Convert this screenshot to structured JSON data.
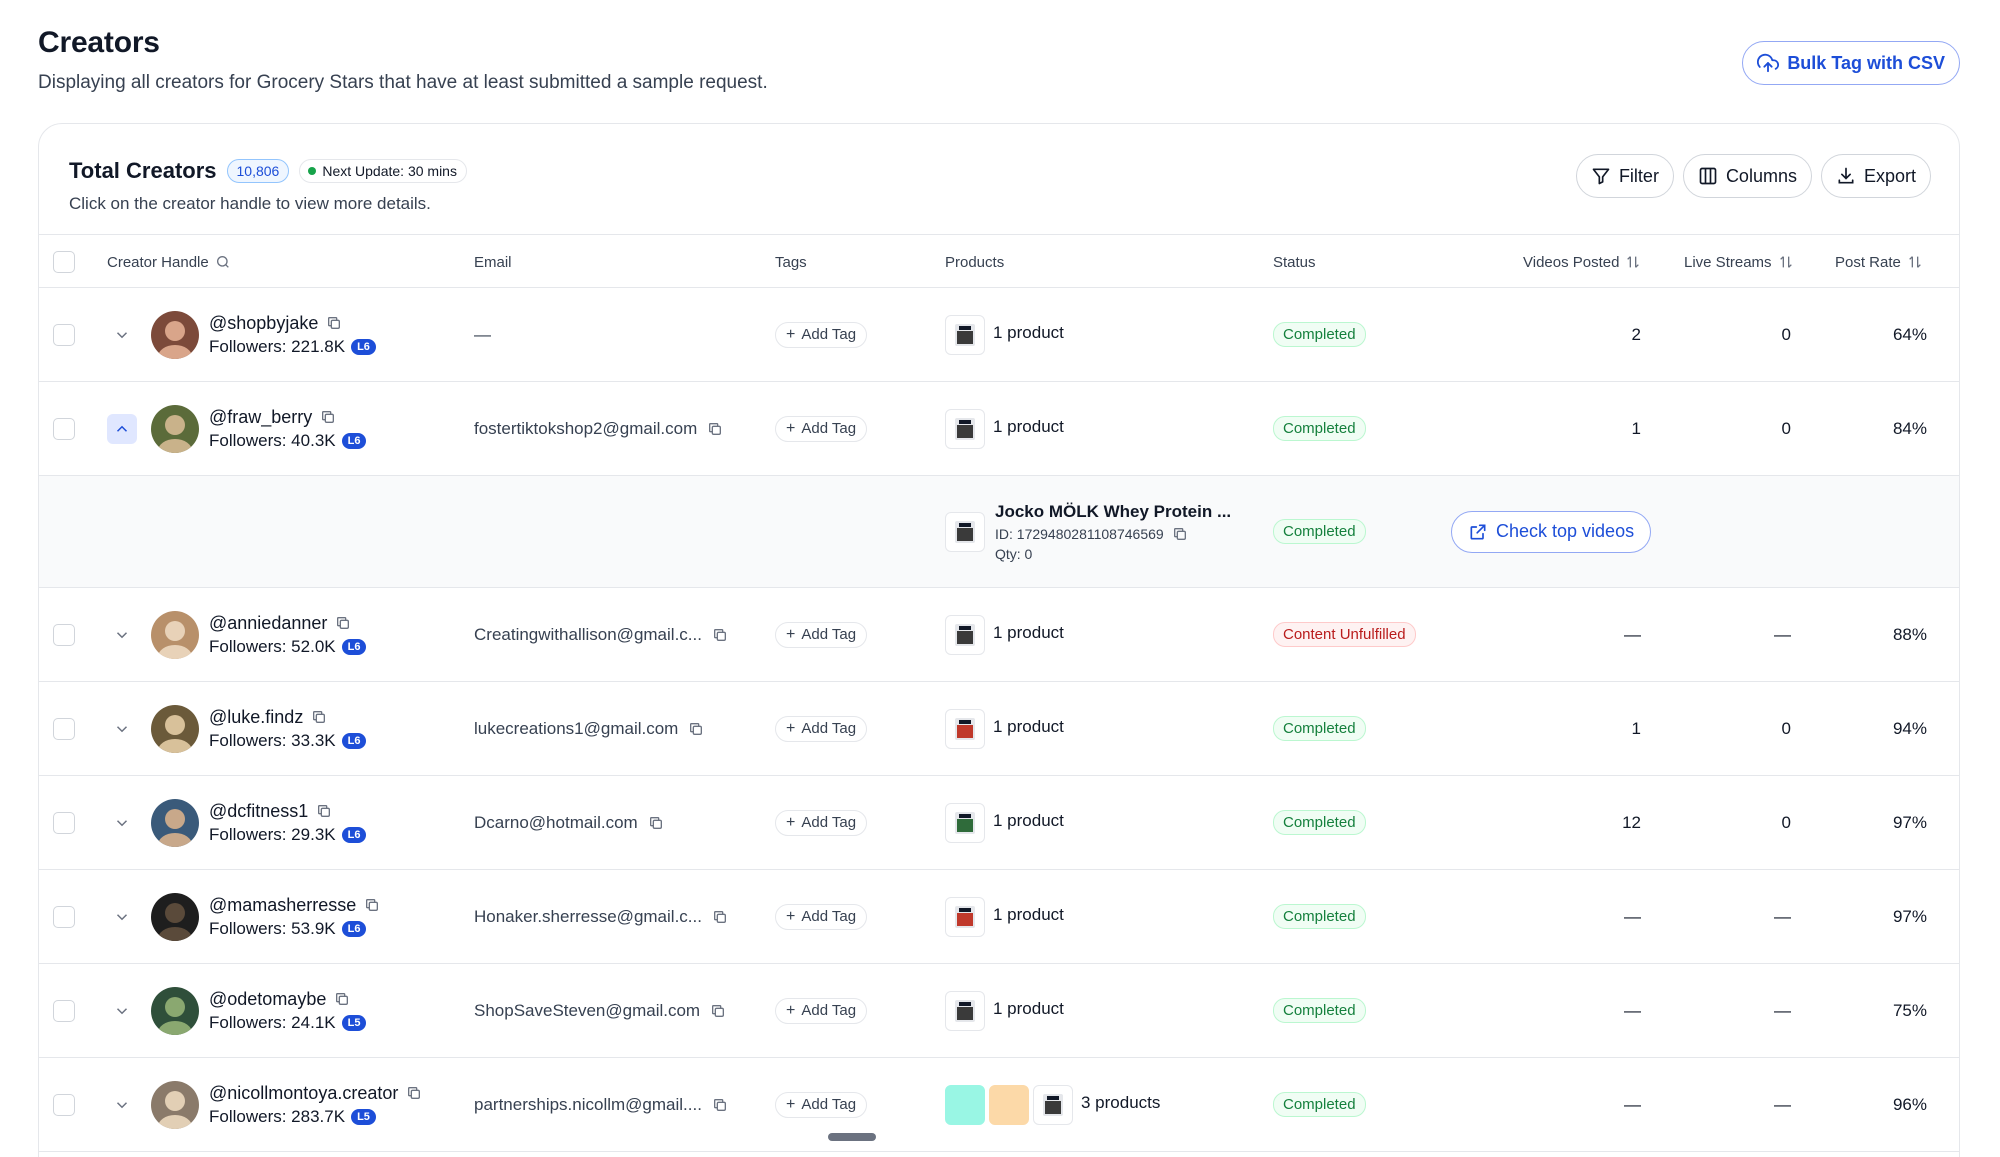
{
  "page": {
    "title": "Creators",
    "subtitle": "Displaying all creators for Grocery Stars that have at least submitted a sample request.",
    "bulk_button": "Bulk Tag with CSV"
  },
  "card": {
    "title": "Total Creators",
    "count": "10,806",
    "next_update": "Next Update: 30 mins",
    "hint": "Click on the creator handle to view more details.",
    "filter_label": "Filter",
    "columns_label": "Columns",
    "export_label": "Export"
  },
  "columns": {
    "handle": "Creator Handle",
    "email": "Email",
    "tags": "Tags",
    "products": "Products",
    "status": "Status",
    "videos": "Videos Posted",
    "streams": "Live Streams",
    "rate": "Post Rate"
  },
  "add_tag_label": "Add Tag",
  "rows": [
    {
      "handle": "@shopbyjake",
      "followers": "Followers: 221.8K",
      "level": "L6",
      "email": "—",
      "products": "1 product",
      "status": "Completed",
      "videos": "2",
      "streams": "0",
      "rate": "64%"
    },
    {
      "handle": "@fraw_berry",
      "followers": "Followers: 40.3K",
      "level": "L6",
      "email": "fostertiktokshop2@gmail.com",
      "products": "1 product",
      "status": "Completed",
      "videos": "1",
      "streams": "0",
      "rate": "84%"
    },
    {
      "handle": "@anniedanner",
      "followers": "Followers: 52.0K",
      "level": "L6",
      "email": "Creatingwithallison@gmail.c...",
      "products": "1 product",
      "status": "Content Unfulfilled",
      "videos": "—",
      "streams": "—",
      "rate": "88%"
    },
    {
      "handle": "@luke.findz",
      "followers": "Followers: 33.3K",
      "level": "L6",
      "email": "lukecreations1@gmail.com",
      "products": "1 product",
      "status": "Completed",
      "videos": "1",
      "streams": "0",
      "rate": "94%"
    },
    {
      "handle": "@dcfitness1",
      "followers": "Followers: 29.3K",
      "level": "L6",
      "email": "Dcarno@hotmail.com",
      "products": "1 product",
      "status": "Completed",
      "videos": "12",
      "streams": "0",
      "rate": "97%"
    },
    {
      "handle": "@mamasherresse",
      "followers": "Followers: 53.9K",
      "level": "L6",
      "email": "Honaker.sherresse@gmail.c...",
      "products": "1 product",
      "status": "Completed",
      "videos": "—",
      "streams": "—",
      "rate": "97%"
    },
    {
      "handle": "@odetomaybe",
      "followers": "Followers: 24.1K",
      "level": "L5",
      "email": "ShopSaveSteven@gmail.com",
      "products": "1 product",
      "status": "Completed",
      "videos": "—",
      "streams": "—",
      "rate": "75%"
    },
    {
      "handle": "@nicollmontoya.creator",
      "followers": "Followers: 283.7K",
      "level": "L5",
      "email": "partnerships.nicollm@gmail....",
      "products": "3 products",
      "status": "Completed",
      "videos": "—",
      "streams": "—",
      "rate": "96%"
    }
  ],
  "expanded": {
    "product_name": "Jocko MÖLK Whey Protein ...",
    "product_id": "ID: 1729480281108746569",
    "qty": "Qty: 0",
    "status": "Completed",
    "check_videos": "Check top videos"
  },
  "colors": {
    "accent": "#1d4ed8",
    "completed": "#15803d",
    "unfulfilled": "#b91c1c"
  }
}
